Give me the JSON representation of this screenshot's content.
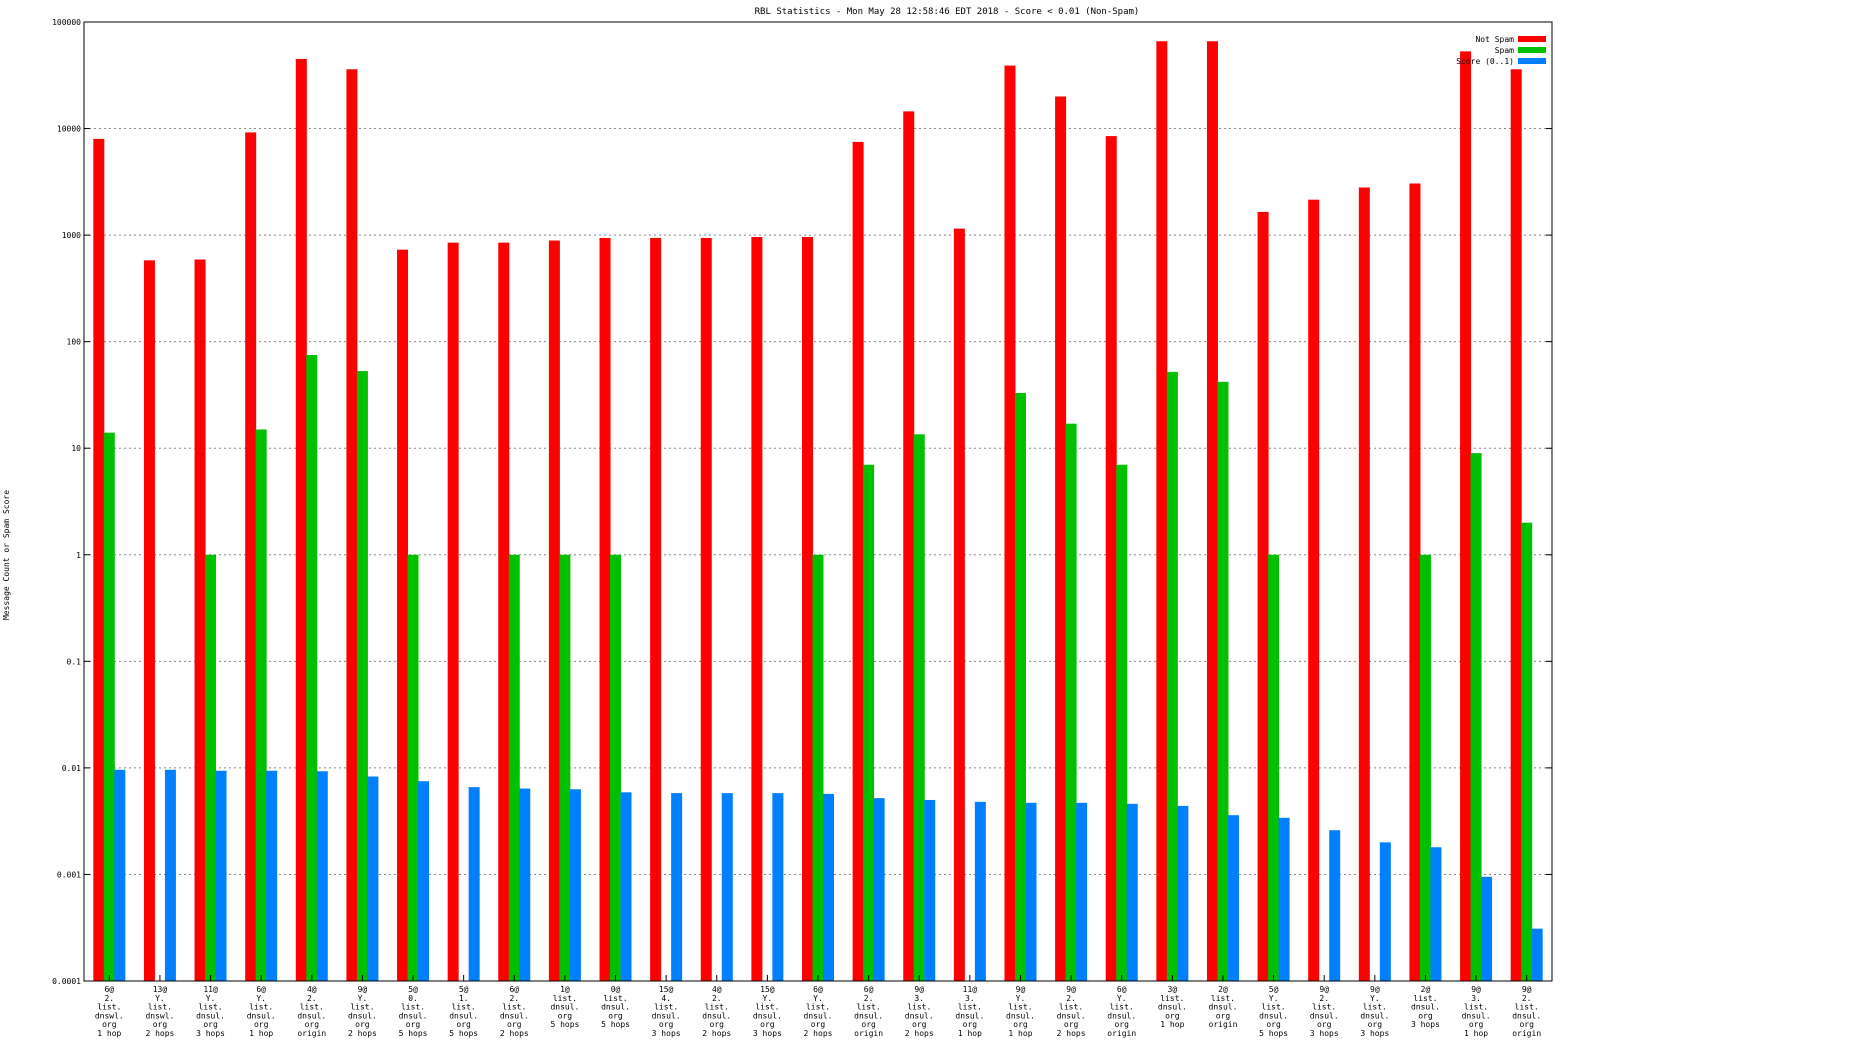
{
  "chart_data": {
    "type": "bar",
    "title": "RBL Statistics - Mon May 28 12:58:46 EDT 2018 - Score < 0.01 (Non-Spam)",
    "xlabel": "",
    "ylabel": "Message Count or Spam Score",
    "yscale": "log",
    "ylim": [
      0.0001,
      100000
    ],
    "yticks": [
      "0.0001",
      "0.001",
      "0.01",
      "0.1",
      "1",
      "10",
      "100",
      "1000",
      "10000",
      "100000"
    ],
    "grid": true,
    "legend_position": "top-right",
    "categories": [
      [
        "6@",
        "2.",
        "list.",
        "dnswl.",
        "org",
        "1 hop"
      ],
      [
        "13@",
        "Y.",
        "list.",
        "dnswl.",
        "org",
        "2 hops"
      ],
      [
        "11@",
        "Y.",
        "list.",
        "dnsul.",
        "org",
        "3 hops"
      ],
      [
        "6@",
        "Y.",
        "list.",
        "dnsul.",
        "org",
        "1 hop"
      ],
      [
        "4@",
        "2.",
        "list.",
        "dnsul.",
        "org",
        "origin"
      ],
      [
        "9@",
        "Y.",
        "list.",
        "dnsul.",
        "org",
        "2 hops"
      ],
      [
        "5@",
        "0.",
        "list.",
        "dnsul.",
        "org",
        "5 hops"
      ],
      [
        "5@",
        "1.",
        "list.",
        "dnsul.",
        "org",
        "5 hops"
      ],
      [
        "6@",
        "2.",
        "list.",
        "dnsul.",
        "org",
        "2 hops"
      ],
      [
        "1@",
        "list.",
        "dnsul.",
        "org",
        "5 hops"
      ],
      [
        "0@",
        "list.",
        "dnsul.",
        "org",
        "5 hops"
      ],
      [
        "15@",
        "4.",
        "list.",
        "dnsul.",
        "org",
        "3 hops"
      ],
      [
        "4@",
        "2.",
        "list.",
        "dnsul.",
        "org",
        "2 hops"
      ],
      [
        "15@",
        "Y.",
        "list.",
        "dnsul.",
        "org",
        "3 hops"
      ],
      [
        "6@",
        "Y.",
        "list.",
        "dnsul.",
        "org",
        "2 hops"
      ],
      [
        "6@",
        "2.",
        "list.",
        "dnsul.",
        "org",
        "origin"
      ],
      [
        "9@",
        "3.",
        "list.",
        "dnsul.",
        "org",
        "2 hops"
      ],
      [
        "11@",
        "3.",
        "list.",
        "dnsul.",
        "org",
        "1 hop"
      ],
      [
        "9@",
        "Y.",
        "list.",
        "dnsul.",
        "org",
        "1 hop"
      ],
      [
        "9@",
        "2.",
        "list.",
        "dnsul.",
        "org",
        "2 hops"
      ],
      [
        "6@",
        "Y.",
        "list.",
        "dnsul.",
        "org",
        "origin"
      ],
      [
        "3@",
        "list.",
        "dnsul.",
        "org",
        "1 hop"
      ],
      [
        "2@",
        "list.",
        "dnsul.",
        "org",
        "origin"
      ],
      [
        "5@",
        "Y.",
        "list.",
        "dnsul.",
        "org",
        "5 hops"
      ],
      [
        "9@",
        "2.",
        "list.",
        "dnsul.",
        "org",
        "3 hops"
      ],
      [
        "9@",
        "Y.",
        "list.",
        "dnsul.",
        "org",
        "3 hops"
      ],
      [
        "2@",
        "list.",
        "dnsul.",
        "org",
        "3 hops"
      ],
      [
        "9@",
        "3.",
        "list.",
        "dnsul.",
        "org",
        "1 hop"
      ],
      [
        "9@",
        "2.",
        "list.",
        "dnsul.",
        "org",
        "origin"
      ]
    ],
    "series": [
      {
        "name": "Not Spam",
        "color": "#ff0000",
        "values": [
          8000,
          580,
          590,
          9200,
          45000,
          36000,
          730,
          850,
          850,
          890,
          940,
          940,
          940,
          960,
          960,
          7500,
          14500,
          1150,
          39000,
          20000,
          8500,
          66000,
          66000,
          1650,
          2150,
          2800,
          3050,
          53000,
          36000
        ]
      },
      {
        "name": "Spam",
        "color": "#00c000",
        "values": [
          14,
          null,
          1,
          15,
          75,
          53,
          1,
          null,
          1,
          1,
          1,
          null,
          null,
          null,
          1,
          7,
          13.5,
          null,
          33,
          17,
          7,
          52,
          42,
          1,
          null,
          null,
          1,
          9,
          2
        ]
      },
      {
        "name": "Score (0..1)",
        "color": "#0080ff",
        "values": [
          0.0096,
          0.0096,
          0.0094,
          0.0094,
          0.0093,
          0.0083,
          0.0075,
          0.0066,
          0.0064,
          0.0063,
          0.0059,
          0.0058,
          0.0058,
          0.0058,
          0.0057,
          0.0052,
          0.005,
          0.0048,
          0.0047,
          0.0047,
          0.0046,
          0.0044,
          0.0036,
          0.0034,
          0.0026,
          0.002,
          0.0018,
          0.00095,
          0.00031
        ]
      }
    ]
  }
}
